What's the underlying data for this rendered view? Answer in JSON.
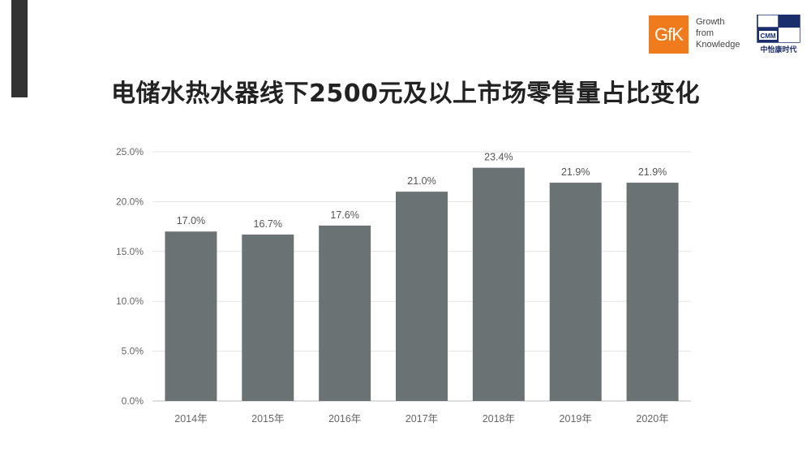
{
  "slide": {
    "title": "电储水热水器线下2500元及以上市场零售量占比变化"
  },
  "logos": {
    "gfk": {
      "mark": "GfK",
      "tagline": [
        "Growth",
        "from",
        "Knowledge"
      ],
      "color": "#f07b1c"
    },
    "cmm": {
      "mark": "CMM",
      "name": "中怡康时代",
      "color": "#1a2e6e"
    }
  },
  "chart_data": {
    "type": "bar",
    "categories": [
      "2014年",
      "2015年",
      "2016年",
      "2017年",
      "2018年",
      "2019年",
      "2020年"
    ],
    "values": [
      17.0,
      16.7,
      17.6,
      21.0,
      23.4,
      21.9,
      21.9
    ],
    "data_labels": [
      "17.0%",
      "16.7%",
      "17.6%",
      "21.0%",
      "23.4%",
      "21.9%",
      "21.9%"
    ],
    "yticks": [
      "0.0%",
      "5.0%",
      "10.0%",
      "15.0%",
      "20.0%",
      "25.0%"
    ],
    "ytick_values": [
      0,
      5,
      10,
      15,
      20,
      25
    ],
    "ylim": [
      0,
      25
    ],
    "grid": true,
    "bar_color": "#6b7273",
    "grid_color": "#e3e3e3",
    "title": "",
    "xlabel": "",
    "ylabel": ""
  }
}
